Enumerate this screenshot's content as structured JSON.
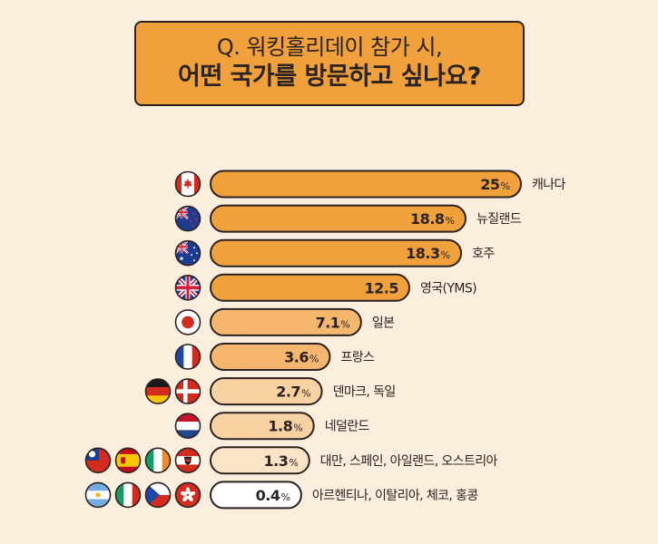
{
  "title": {
    "line1": "Q. 워킹홀리데이 참가 시,",
    "line2": "어떤 국가를 방문하고 싶나요?"
  },
  "colors": {
    "background": "#FBEEDD",
    "title_fill": "#F0A13C",
    "outline": "#2B2222",
    "bar_dark": "#F0A13C",
    "bar_mid": "#F5B66E",
    "bar_light": "#F9D2A4",
    "bar_lightest": "#FCE3C5",
    "bar_white": "#FFFFFF"
  },
  "chart_data": {
    "type": "bar",
    "orientation": "horizontal",
    "categories": [
      "캐나다",
      "뉴질랜드",
      "호주",
      "영국(YMS)",
      "일본",
      "프랑스",
      "덴마크, 독일",
      "네덜란드",
      "대만, 스페인, 아일랜드, 오스트리아",
      "아르헨티나, 이탈리아, 체코, 홍콩"
    ],
    "values": [
      25,
      18.8,
      18.3,
      12.5,
      7.1,
      3.6,
      2.7,
      1.8,
      1.3,
      0.4
    ],
    "value_labels": [
      "25",
      "18.8",
      "18.3",
      "12.5",
      "7.1",
      "3.6",
      "2.7",
      "1.8",
      "1.3",
      "0.4"
    ],
    "value_suffix": [
      "%",
      "%",
      "%",
      "",
      "%",
      "%",
      "%",
      "%",
      "%",
      "%"
    ],
    "flags": [
      [
        "canada-flag-icon"
      ],
      [
        "new-zealand-flag-icon"
      ],
      [
        "australia-flag-icon"
      ],
      [
        "uk-flag-icon"
      ],
      [
        "japan-flag-icon"
      ],
      [
        "france-flag-icon"
      ],
      [
        "germany-flag-icon",
        "denmark-flag-icon"
      ],
      [
        "netherlands-flag-icon"
      ],
      [
        "taiwan-flag-icon",
        "spain-flag-icon",
        "ireland-flag-icon",
        "austria-flag-icon"
      ],
      [
        "argentina-flag-icon",
        "italy-flag-icon",
        "czech-flag-icon",
        "hong-kong-flag-icon"
      ]
    ]
  }
}
